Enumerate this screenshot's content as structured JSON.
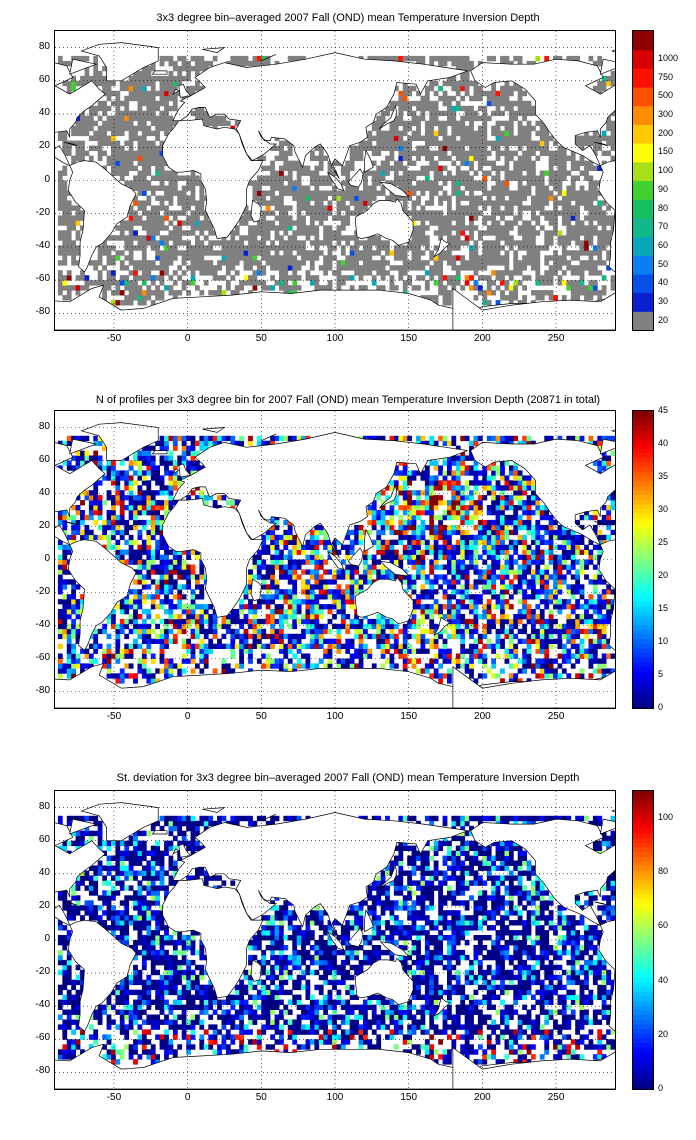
{
  "chart_data": [
    {
      "type": "heatmap",
      "title": "3x3 degree bin–averaged 2007 Fall (OND) mean Temperature Inversion Depth",
      "xlim": [
        -90,
        290
      ],
      "ylim": [
        -90,
        90
      ],
      "xticks": [
        "-50",
        "0",
        "50",
        "100",
        "150",
        "200",
        "250"
      ],
      "yticks": [
        "80",
        "60",
        "40",
        "20",
        "0",
        "-20",
        "-40",
        "-60",
        "-80"
      ],
      "grid": true,
      "colorbar": {
        "kind": "categorical",
        "labels": [
          "20",
          "30",
          "40",
          "50",
          "60",
          "70",
          "80",
          "90",
          "100",
          "150",
          "200",
          "300",
          "500",
          "750",
          "1000"
        ],
        "colors": [
          "#808080",
          "#0a1fd0",
          "#0650e8",
          "#0a80f0",
          "#08a8b8",
          "#10b88a",
          "#18c060",
          "#40d030",
          "#a8e018",
          "#ffff00",
          "#ffc800",
          "#ff8c00",
          "#ff5000",
          "#ff1000",
          "#d80000",
          "#900000"
        ]
      }
    },
    {
      "type": "heatmap",
      "title": "N of profiles per 3x3 degree bin for 2007 Fall (OND) mean Temperature Inversion Depth  (20871 in total)",
      "xlim": [
        -90,
        290
      ],
      "ylim": [
        -90,
        90
      ],
      "xticks": [
        "-50",
        "0",
        "50",
        "100",
        "150",
        "200",
        "250"
      ],
      "yticks": [
        "80",
        "60",
        "40",
        "20",
        "0",
        "-20",
        "-40",
        "-60",
        "-80"
      ],
      "grid": true,
      "colorbar": {
        "kind": "continuous",
        "range": [
          0,
          45
        ],
        "labels": [
          "45",
          "40",
          "35",
          "30",
          "25",
          "20",
          "15",
          "10",
          "5",
          "0"
        ]
      }
    },
    {
      "type": "heatmap",
      "title": "St. deviation for 3x3 degree bin–averaged 2007 Fall (OND) mean Temperature Inversion Depth",
      "xlim": [
        -90,
        290
      ],
      "ylim": [
        -90,
        90
      ],
      "xticks": [
        "-50",
        "0",
        "50",
        "100",
        "150",
        "200",
        "250"
      ],
      "yticks": [
        "80",
        "60",
        "40",
        "20",
        "0",
        "-20",
        "-40",
        "-60",
        "-80"
      ],
      "grid": true,
      "colorbar": {
        "kind": "continuous",
        "range": [
          0,
          110
        ],
        "labels": [
          "100",
          "80",
          "60",
          "40",
          "20",
          "0"
        ]
      }
    }
  ],
  "colors": {
    "land": "#ffffff",
    "coast": "#000000",
    "missing": "#ffffff"
  }
}
